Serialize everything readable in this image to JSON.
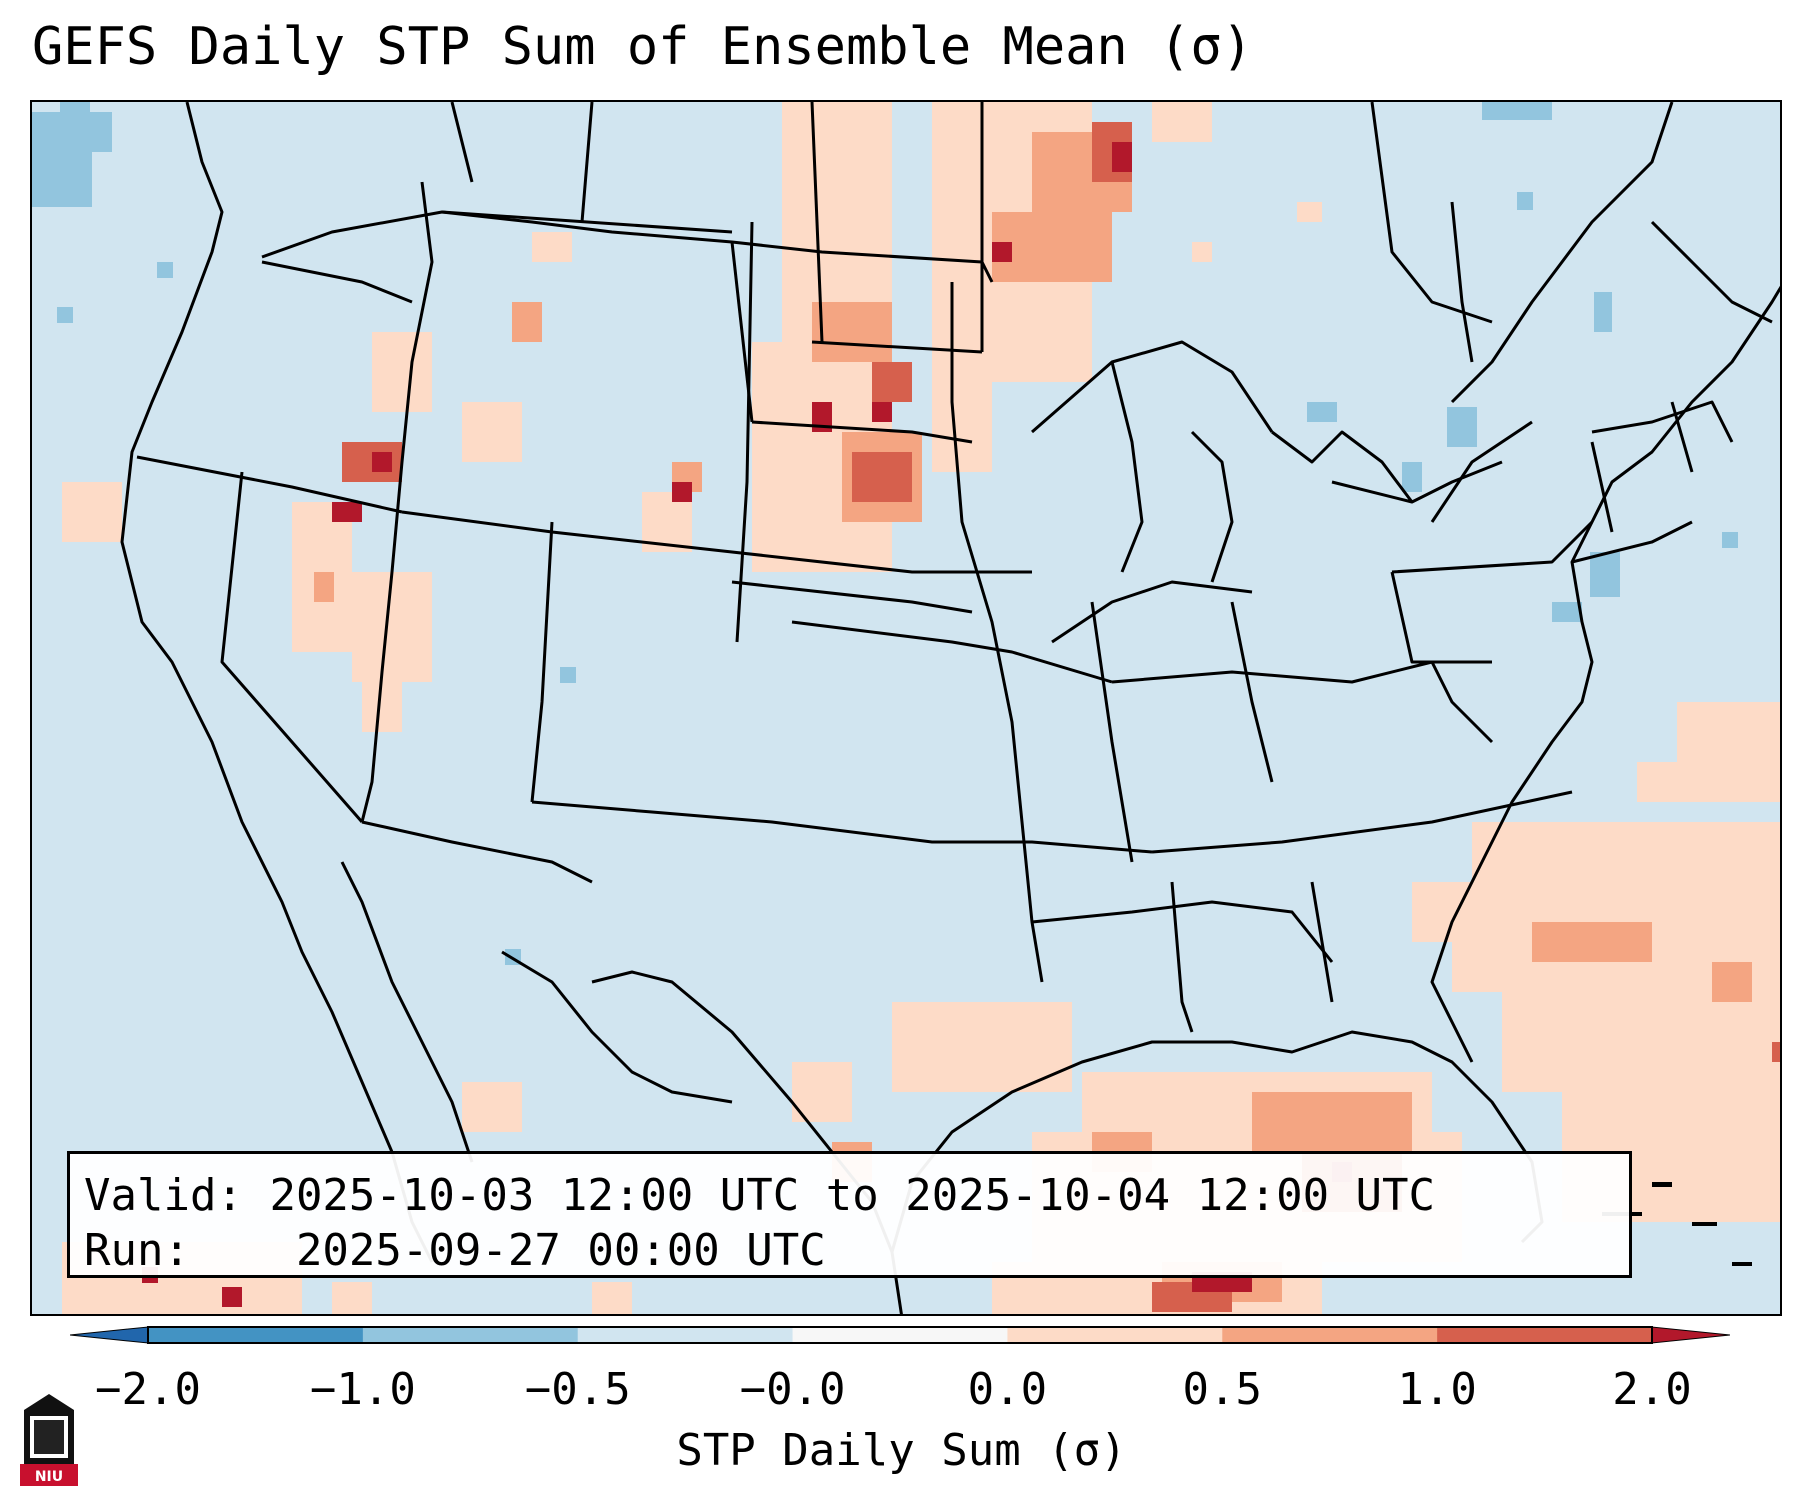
{
  "figure": {
    "title": "GEFS Daily STP Sum of Ensemble Mean (σ)",
    "valid_label": "Valid:",
    "valid_value": "2025-10-03 12:00 UTC to 2025-10-04 12:00 UTC",
    "run_label": "Run:",
    "run_value": "2025-09-27 00:00 UTC",
    "colorbar_label": "STP Daily Sum (σ)",
    "logo_text": "NIU"
  },
  "colorbar": {
    "ticks": [
      "−2.0",
      "−1.0",
      "−0.5",
      "−0.0",
      "0.0",
      "0.5",
      "1.0",
      "2.0"
    ],
    "colors": [
      "#4393c3",
      "#92c5de",
      "#d1e5f0",
      "#f7f7f7",
      "#fddbc7",
      "#f4a582",
      "#d6604d"
    ],
    "extend_low": "#2166ac",
    "extend_high": "#b2182b"
  },
  "map": {
    "background": "#d1e5f0",
    "region": "Contiguous United States",
    "anomaly_areas": [
      {
        "name": "north-dakota",
        "level": "1.0 to 2.0"
      },
      {
        "name": "manitoba-minnesota",
        "level": "1.0 to 2.0"
      },
      {
        "name": "oregon-idaho",
        "level": "1.0 to 2.0"
      },
      {
        "name": "gulf-of-mexico",
        "level": "1.0 to 2.0"
      },
      {
        "name": "western-atlantic",
        "level": "0.0 to 1.0"
      },
      {
        "name": "nevada-utah",
        "level": "0.0 to 1.0"
      },
      {
        "name": "wyoming",
        "level": "0.5 to 1.0"
      },
      {
        "name": "texas-coast",
        "level": "0.5 to 1.0"
      },
      {
        "name": "caribbean-north",
        "level": "1.0 to 2.0"
      }
    ]
  }
}
